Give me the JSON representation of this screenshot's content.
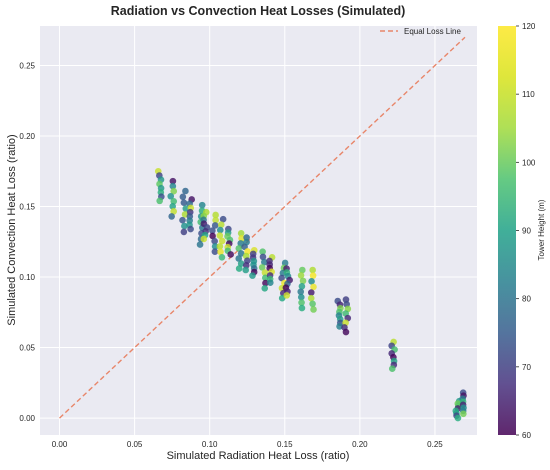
{
  "chart_data": {
    "type": "scatter",
    "title": "Radiation vs Convection Heat Losses (Simulated)",
    "xlabel": "Simulated Radiation Heat Loss (ratio)",
    "ylabel": "Simulated Convection Heat Loss (ratio)",
    "xlim": [
      -0.013,
      0.278
    ],
    "ylim": [
      -0.012,
      0.278
    ],
    "xticks": [
      0.0,
      0.05,
      0.1,
      0.15,
      0.2,
      0.25
    ],
    "yticks": [
      0.0,
      0.05,
      0.1,
      0.15,
      0.2,
      0.25
    ],
    "xtick_labels": [
      "0.00",
      "0.05",
      "0.10",
      "0.15",
      "0.20",
      "0.25"
    ],
    "ytick_labels": [
      "0.00",
      "0.05",
      "0.10",
      "0.15",
      "0.20",
      "0.25"
    ],
    "grid": true,
    "legend": {
      "position": "top-right",
      "entries": [
        "Equal Loss Line"
      ]
    },
    "reference_line": {
      "name": "Equal Loss Line",
      "from": [
        0.0,
        0.0
      ],
      "to": [
        0.27,
        0.27
      ],
      "color": "#e8866a",
      "style": "dashed"
    },
    "colorbar": {
      "label": "Tower Height (m)",
      "min": 60,
      "max": 120,
      "ticks": [
        60,
        70,
        80,
        90,
        100,
        110,
        120
      ],
      "colormap": "viridis"
    },
    "clusters": [
      {
        "x": 0.067,
        "y_max": 0.175,
        "y_min": 0.154
      },
      {
        "x": 0.075,
        "y_max": 0.168,
        "y_min": 0.143
      },
      {
        "x": 0.083,
        "y_max": 0.161,
        "y_min": 0.132
      },
      {
        "x": 0.087,
        "y_max": 0.155,
        "y_min": 0.134
      },
      {
        "x": 0.094,
        "y_max": 0.151,
        "y_min": 0.123
      },
      {
        "x": 0.097,
        "y_max": 0.146,
        "y_min": 0.127
      },
      {
        "x": 0.103,
        "y_max": 0.144,
        "y_min": 0.118
      },
      {
        "x": 0.108,
        "y_max": 0.141,
        "y_min": 0.114
      },
      {
        "x": 0.113,
        "y_max": 0.134,
        "y_min": 0.116
      },
      {
        "x": 0.12,
        "y_max": 0.131,
        "y_min": 0.106
      },
      {
        "x": 0.124,
        "y_max": 0.128,
        "y_min": 0.105
      },
      {
        "x": 0.129,
        "y_max": 0.119,
        "y_min": 0.101
      },
      {
        "x": 0.136,
        "y_max": 0.118,
        "y_min": 0.092
      },
      {
        "x": 0.141,
        "y_max": 0.114,
        "y_min": 0.096
      },
      {
        "x": 0.149,
        "y_max": 0.11,
        "y_min": 0.085
      },
      {
        "x": 0.152,
        "y_max": 0.106,
        "y_min": 0.087
      },
      {
        "x": 0.161,
        "y_max": 0.105,
        "y_min": 0.078
      },
      {
        "x": 0.168,
        "y_max": 0.105,
        "y_min": 0.077
      },
      {
        "x": 0.186,
        "y_max": 0.083,
        "y_min": 0.065
      },
      {
        "x": 0.191,
        "y_max": 0.084,
        "y_min": 0.061
      },
      {
        "x": 0.222,
        "y_max": 0.054,
        "y_min": 0.035
      },
      {
        "x": 0.265,
        "y_max": 0.012,
        "y_min": 0.0
      },
      {
        "x": 0.268,
        "y_max": 0.018,
        "y_min": 0.003
      }
    ]
  }
}
